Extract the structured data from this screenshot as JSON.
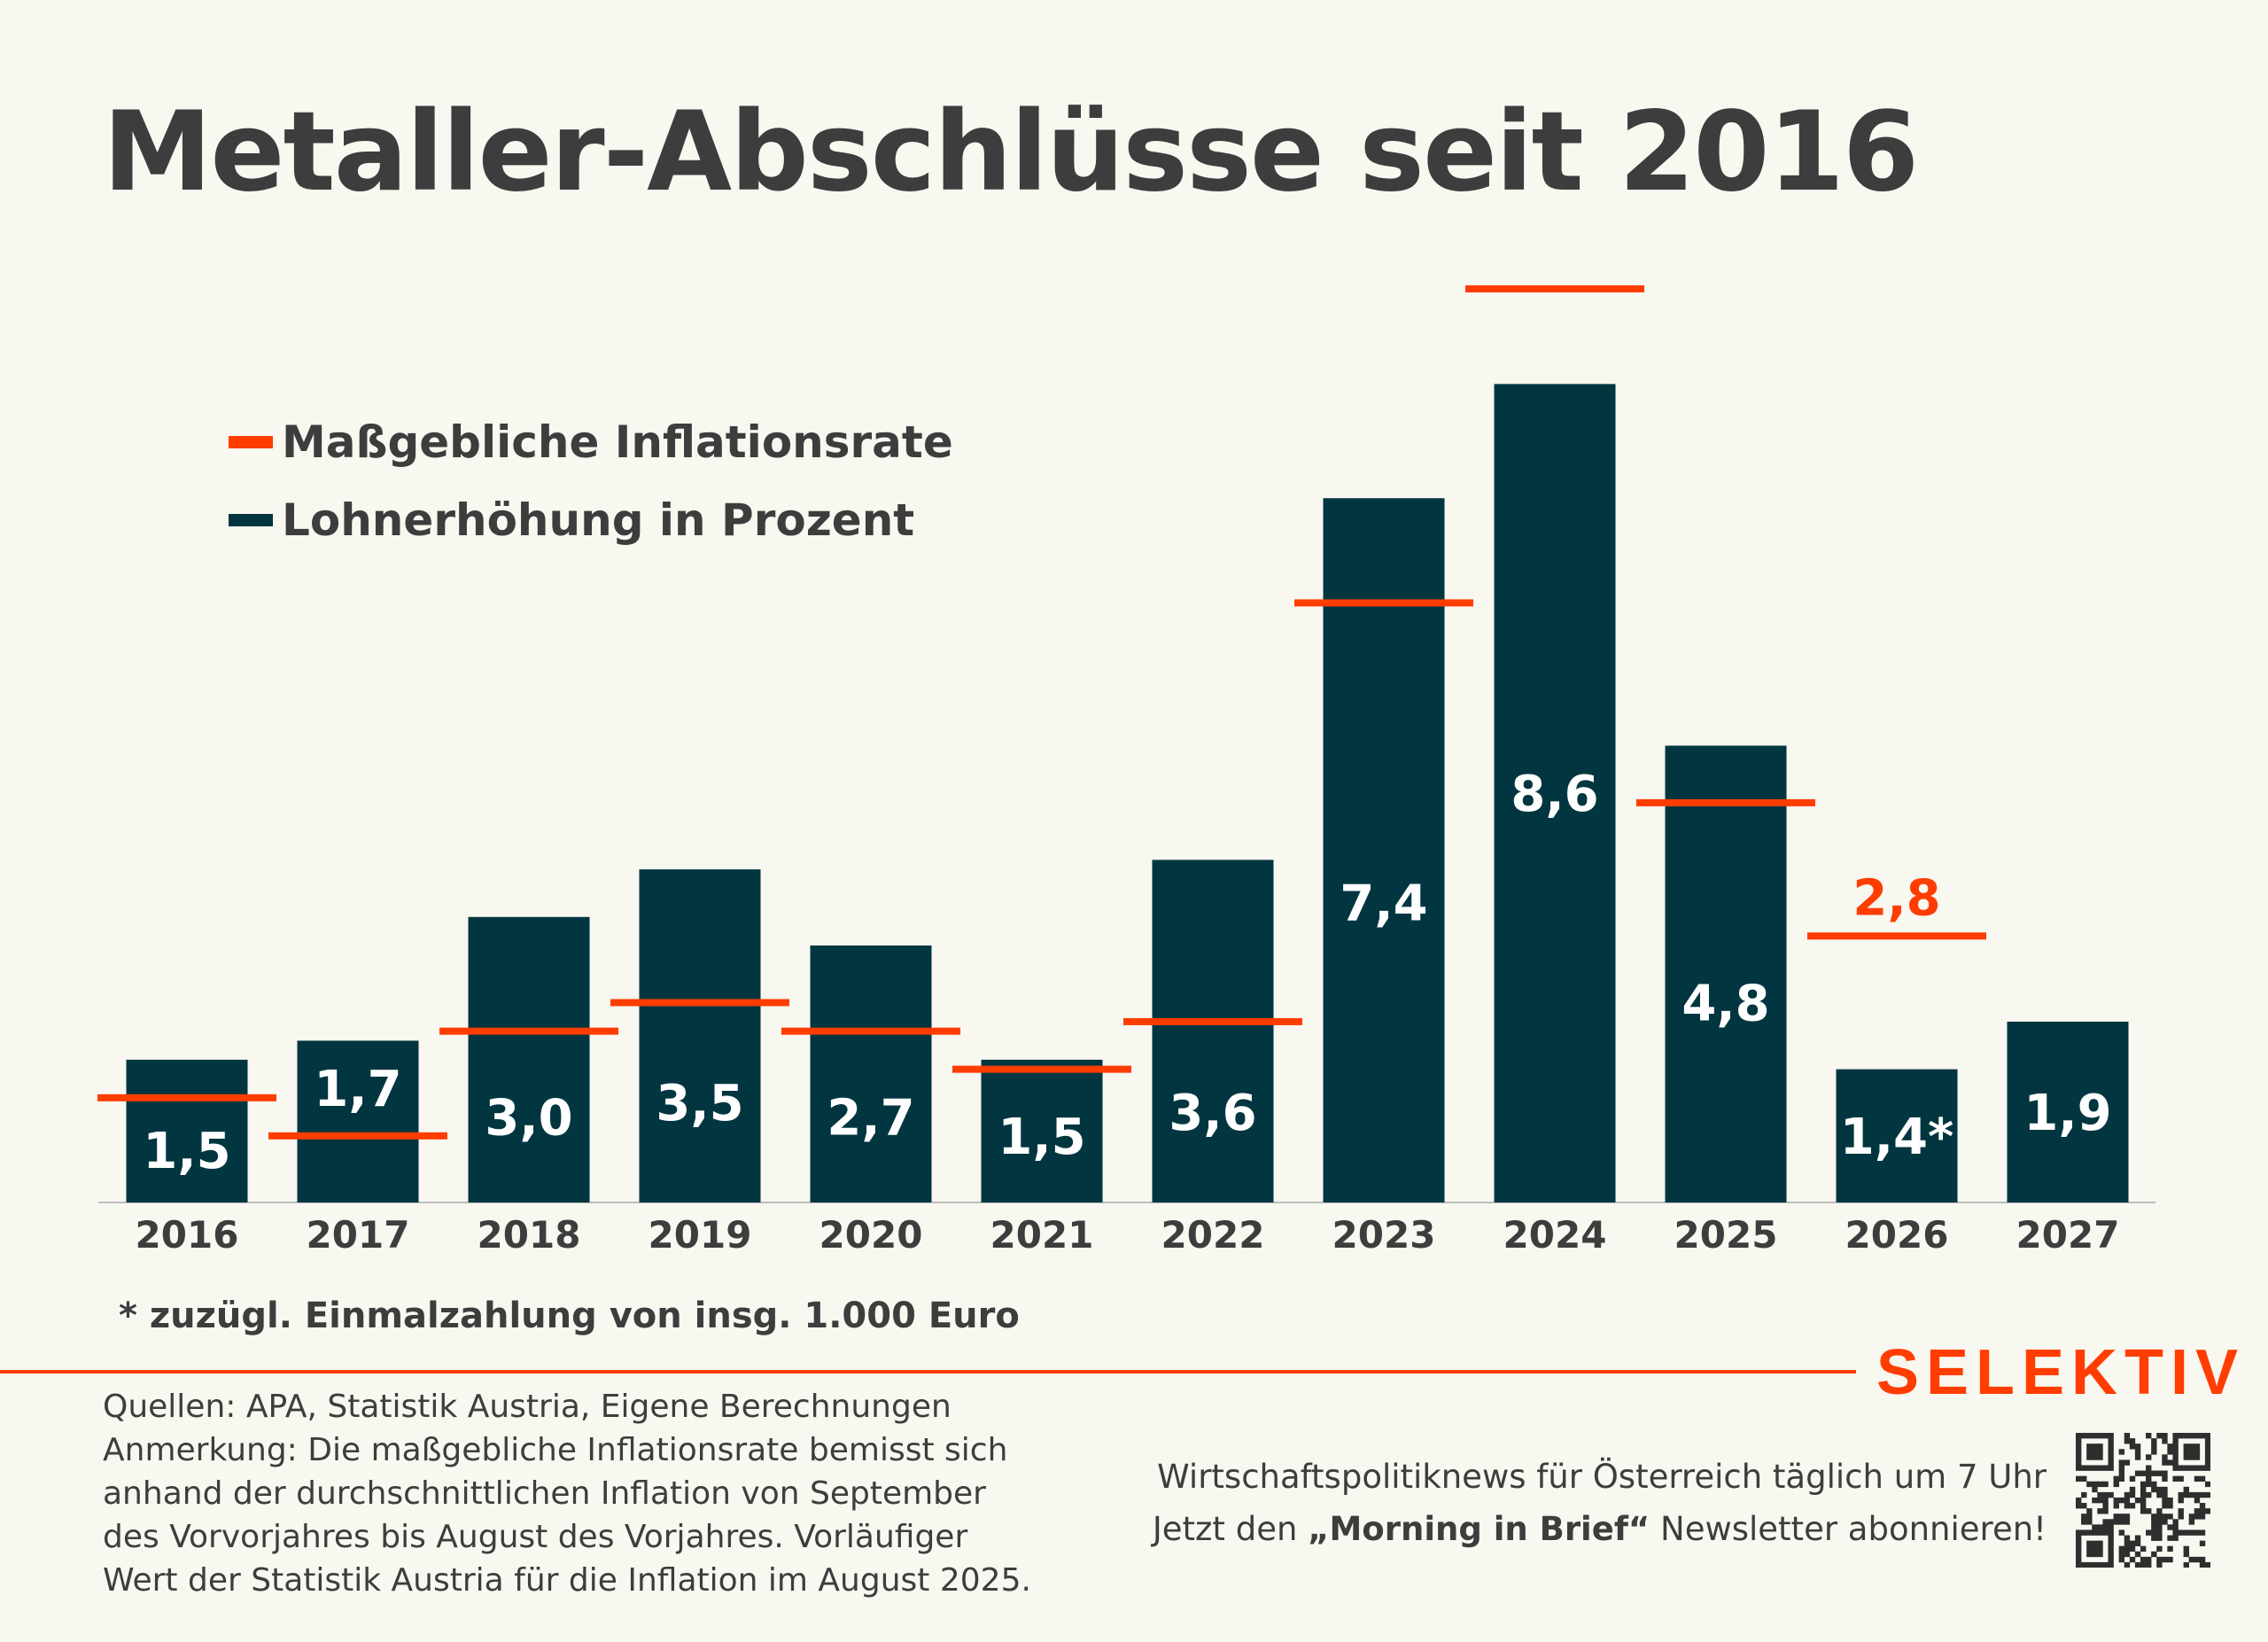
{
  "title": "Metaller-Abschlüsse seit 2016",
  "colors": {
    "background": "#f8f7f0",
    "wage": "#013640",
    "inflation": "#ff3d00",
    "text": "#3d3d3d"
  },
  "chart_data": {
    "type": "bar",
    "categories": [
      "2016",
      "2017",
      "2018",
      "2019",
      "2020",
      "2021",
      "2022",
      "2023",
      "2024",
      "2025",
      "2026",
      "2027"
    ],
    "series": [
      {
        "name": "Lohnerhöhung in Prozent",
        "type": "bar",
        "values": [
          1.5,
          1.7,
          3.0,
          3.5,
          2.7,
          1.5,
          3.6,
          7.4,
          8.6,
          4.8,
          1.4,
          1.9
        ],
        "labels": [
          "1,5",
          "1,7",
          "3,0",
          "3,5",
          "2,7",
          "1,5",
          "3,6",
          "7,4",
          "8,6",
          "4,8",
          "1,4*",
          "1,9"
        ]
      },
      {
        "name": "Maßgebliche Inflationsrate",
        "type": "marker",
        "values": [
          1.1,
          0.7,
          1.8,
          2.1,
          1.8,
          1.4,
          1.9,
          6.3,
          9.6,
          4.2,
          2.8,
          null
        ],
        "labels": [
          null,
          null,
          null,
          null,
          null,
          null,
          null,
          null,
          null,
          null,
          "2,8",
          null
        ]
      }
    ],
    "ylim": [
      0,
      10
    ],
    "grid": false,
    "legend": "top-left"
  },
  "footnote": "* zuzügl. Einmalzahlung von insg. 1.000 Euro",
  "brand": "SELEKTIV",
  "sources": [
    "Quellen: APA, Statistik Austria, Eigene Berechnungen",
    "Anmerkung: Die maßgebliche Inflationsrate bemisst sich",
    "anhand der durchschnittlichen Inflation von September",
    "des Vorvorjahres bis August des Vorjahres. Vorläufiger",
    "Wert der Statistik Austria für die Inflation im August 2025."
  ],
  "promo": {
    "line1": "Wirtschaftspolitiknews für Österreich täglich um 7 Uhr",
    "line2_pre": "Jetzt den ",
    "line2_bold": "„Morning in Brief“",
    "line2_post": " Newsletter abonnieren!"
  },
  "qr_icon": "qr-code-icon"
}
